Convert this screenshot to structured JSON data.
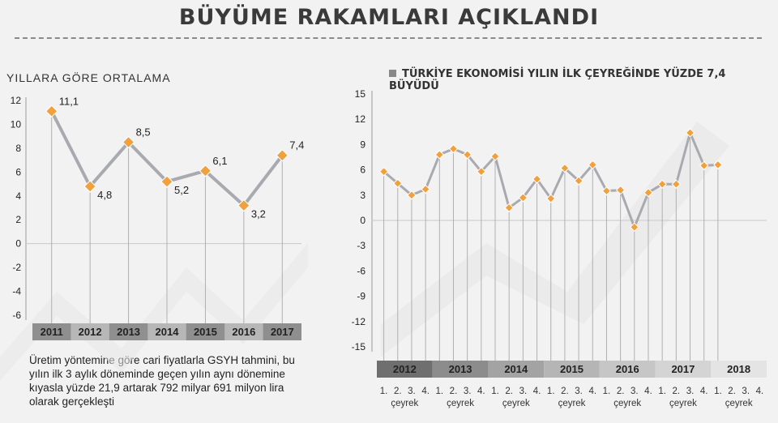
{
  "header": {
    "title": "BÜYÜME RAKAMLARI AÇIKLANDI"
  },
  "note": "Üretim yöntemine göre cari fiyatlarla GSYH tahmini, bu yılın ilk 3 aylık döneminde geçen yılın aynı dönemine kıyasla yüzde 21,9 artarak 792 milyar 691 milyon lira olarak gerçekleşti",
  "colors": {
    "marker": "#f0a03c",
    "line": "#a9aab0",
    "drop": "#b0b0b0",
    "yearbar_dark": "#7d7d7d",
    "yearbar_mid": "#bdbdbd",
    "yearbar_light": "#e0e0e0"
  },
  "chart_data": [
    {
      "type": "line",
      "title": "YILLARA GÖRE ORTALAMA",
      "categories": [
        "2011",
        "2012",
        "2013",
        "2014",
        "2015",
        "2016",
        "2017"
      ],
      "values": [
        11.1,
        4.8,
        8.5,
        5.2,
        6.1,
        3.2,
        7.4
      ],
      "data_labels": [
        "11,1",
        "4,8",
        "8,5",
        "5,2",
        "6,1",
        "3,2",
        "7,4"
      ],
      "yticks": [
        "12",
        "10",
        "8",
        "6",
        "4",
        "2",
        "0",
        "-2",
        "-4",
        "-6"
      ],
      "ylim": [
        -6,
        12
      ],
      "grid": false
    },
    {
      "type": "line",
      "title": "TÜRKİYE EKONOMİSİ YILIN İLK ÇEYREĞİNDE YÜZDE 7,4 BÜYÜDÜ",
      "years": [
        "2012",
        "2013",
        "2014",
        "2015",
        "2016",
        "2017",
        "2018"
      ],
      "quarter_labels": [
        "1.",
        "2.",
        "3.",
        "4."
      ],
      "quarter_word": "çeyrek",
      "values": [
        5.8,
        4.4,
        3.0,
        3.7,
        7.8,
        8.5,
        7.8,
        5.8,
        7.6,
        1.5,
        2.7,
        4.9,
        2.6,
        6.2,
        4.7,
        6.6,
        3.5,
        3.6,
        -0.8,
        3.3,
        4.3,
        4.3,
        10.4,
        6.5,
        6.6
      ],
      "yticks": [
        "15",
        "12",
        "9",
        "6",
        "3",
        "0",
        "-3",
        "-6",
        "-9",
        "-12",
        "-15"
      ],
      "ylim": [
        -15,
        15
      ],
      "grid": false
    }
  ]
}
